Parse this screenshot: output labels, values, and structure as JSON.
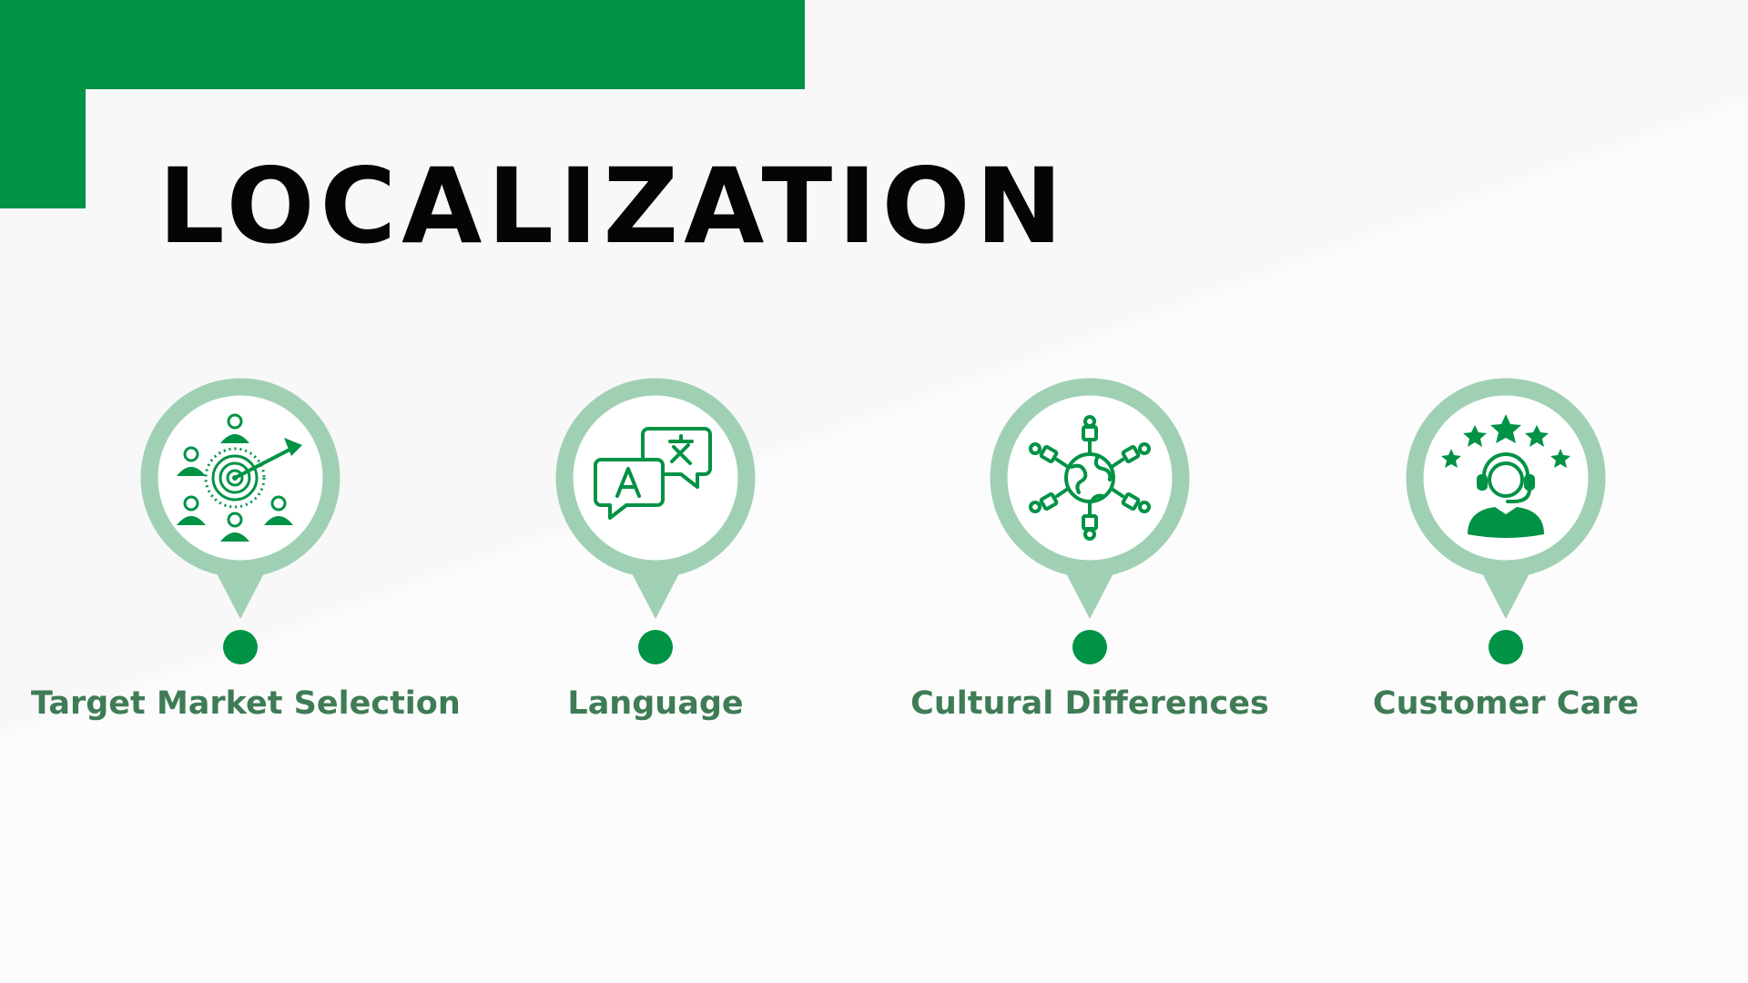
{
  "slide": {
    "title": "LOCALIZATION",
    "accent_color": "#009245",
    "pin_color": "#a0d0b4",
    "label_color": "#3e7c55",
    "items": [
      {
        "label": "Target Market Selection",
        "icon": "target-audience-icon"
      },
      {
        "label": "Language",
        "icon": "translate-chat-icon"
      },
      {
        "label": "Cultural Differences",
        "icon": "globe-network-icon"
      },
      {
        "label": "Customer Care",
        "icon": "customer-support-stars-icon"
      }
    ]
  }
}
